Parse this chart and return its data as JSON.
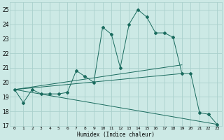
{
  "xlabel": "Humidex (Indice chaleur)",
  "bg_color": "#cce9e5",
  "grid_color": "#aad0cc",
  "line_color": "#1a6b5e",
  "xlim": [
    -0.5,
    23.5
  ],
  "ylim": [
    17,
    25.5
  ],
  "yticks": [
    17,
    18,
    19,
    20,
    21,
    22,
    23,
    24,
    25
  ],
  "xticks": [
    0,
    1,
    2,
    3,
    4,
    5,
    6,
    7,
    8,
    9,
    10,
    11,
    12,
    13,
    14,
    15,
    16,
    17,
    18,
    19,
    20,
    21,
    22,
    23
  ],
  "series_main": {
    "x": [
      0,
      1,
      2,
      3,
      4,
      5,
      6,
      7,
      8,
      9,
      10,
      11,
      12,
      13,
      14,
      15,
      16,
      17,
      18,
      19,
      20,
      21,
      22,
      23
    ],
    "y": [
      19.5,
      18.6,
      19.5,
      19.2,
      19.2,
      19.2,
      19.3,
      20.8,
      20.4,
      20.0,
      23.8,
      23.3,
      21.0,
      24.0,
      25.0,
      24.5,
      23.4,
      23.4,
      23.1,
      20.6,
      20.6,
      17.9,
      17.8,
      17.1
    ]
  },
  "series_lines": [
    {
      "x": [
        0,
        19
      ],
      "y": [
        19.5,
        21.2
      ]
    },
    {
      "x": [
        0,
        19
      ],
      "y": [
        19.5,
        20.6
      ]
    },
    {
      "x": [
        0,
        23
      ],
      "y": [
        19.5,
        17.1
      ]
    }
  ]
}
